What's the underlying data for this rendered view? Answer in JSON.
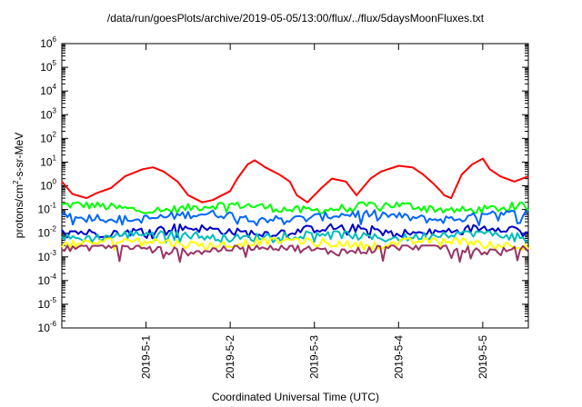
{
  "chart_data": {
    "type": "line",
    "title": "/data/run/goesPlots/archive/2019-05-05/13:00/flux/../flux/5daysMoonFluxes.txt",
    "xlabel": "Coordinated Universal Time (UTC)",
    "ylabel": "protons/cm2-s-sr-MeV",
    "ylabel_parts": {
      "base": "protons/cm",
      "sup": "2",
      "rest": "-s-sr-MeV"
    },
    "y_scale": "log",
    "ylim": [
      1e-06,
      1000000.0
    ],
    "y_ticks": [
      {
        "value": 1e-06,
        "base": "10",
        "exp": "-6"
      },
      {
        "value": 1e-05,
        "base": "10",
        "exp": "-5"
      },
      {
        "value": 0.0001,
        "base": "10",
        "exp": "-4"
      },
      {
        "value": 0.001,
        "base": "10",
        "exp": "-3"
      },
      {
        "value": 0.01,
        "base": "10",
        "exp": "-2"
      },
      {
        "value": 0.1,
        "base": "10",
        "exp": "-1"
      },
      {
        "value": 1,
        "base": "10",
        "exp": "0"
      },
      {
        "value": 10,
        "base": "10",
        "exp": "1"
      },
      {
        "value": 100,
        "base": "10",
        "exp": "2"
      },
      {
        "value": 1000,
        "base": "10",
        "exp": "3"
      },
      {
        "value": 10000,
        "base": "10",
        "exp": "4"
      },
      {
        "value": 100000,
        "base": "10",
        "exp": "5"
      },
      {
        "value": 1000000,
        "base": "10",
        "exp": "6"
      }
    ],
    "xlim": [
      "2019-04-30 00:00",
      "2019-05-05 13:00"
    ],
    "x_ticks": [
      "2019-5-1",
      "2019-5-2",
      "2019-5-3",
      "2019-5-4",
      "2019-5-5"
    ],
    "grid": false,
    "legend": "none",
    "series": [
      {
        "color": "#ff0000",
        "x": [
          "2019-04-30 00:00",
          "2019-04-30 03:00",
          "2019-04-30 07:00",
          "2019-04-30 10:00",
          "2019-04-30 14:00",
          "2019-04-30 18:00",
          "2019-04-30 23:00",
          "2019-05-01 02:00",
          "2019-05-01 05:00",
          "2019-05-01 09:00",
          "2019-05-01 12:00",
          "2019-05-01 16:00",
          "2019-05-01 19:00",
          "2019-05-02 00:00",
          "2019-05-02 02:00",
          "2019-05-02 05:00",
          "2019-05-02 07:00",
          "2019-05-02 10:00",
          "2019-05-02 14:00",
          "2019-05-02 17:00",
          "2019-05-02 19:00",
          "2019-05-02 22:00",
          "2019-05-03 02:00",
          "2019-05-03 05:00",
          "2019-05-03 09:00",
          "2019-05-03 12:00",
          "2019-05-03 16:00",
          "2019-05-03 19:00",
          "2019-05-04 00:00",
          "2019-05-04 04:00",
          "2019-05-04 07:00",
          "2019-05-04 10:00",
          "2019-05-04 12:00",
          "2019-05-04 13:00",
          "2019-05-04 15:00",
          "2019-05-04 18:00",
          "2019-05-04 21:00",
          "2019-05-05 00:00",
          "2019-05-05 02:00",
          "2019-05-05 05:00",
          "2019-05-05 09:00",
          "2019-05-05 13:00"
        ],
        "values": [
          1.5,
          0.45,
          0.3,
          0.5,
          0.8,
          2.5,
          5,
          6,
          4,
          1.5,
          0.4,
          0.2,
          0.25,
          0.6,
          2,
          8,
          12,
          6,
          3,
          1.5,
          0.4,
          0.2,
          0.8,
          2,
          1.5,
          0.4,
          2,
          4,
          7,
          6,
          3,
          1.2,
          0.6,
          0.4,
          0.3,
          3,
          8,
          14,
          5,
          2.5,
          1.5,
          2.5
        ]
      },
      {
        "color": "#00ff00",
        "values_range": [
          0.07,
          0.2
        ],
        "typical": 0.12
      },
      {
        "color": "#0066ff",
        "values_range": [
          0.02,
          0.1
        ],
        "typical": 0.05
      },
      {
        "color": "#0000cc",
        "values_range": [
          0.006,
          0.025
        ],
        "typical": 0.013
      },
      {
        "color": "#00bbbb",
        "values_range": [
          0.004,
          0.012
        ],
        "typical": 0.008
      },
      {
        "color": "#ffff00",
        "values_range": [
          0.002,
          0.006
        ],
        "typical": 0.004
      },
      {
        "color": "#993366",
        "values_range": [
          0.0006,
          0.003
        ],
        "typical": 0.0022
      }
    ]
  }
}
